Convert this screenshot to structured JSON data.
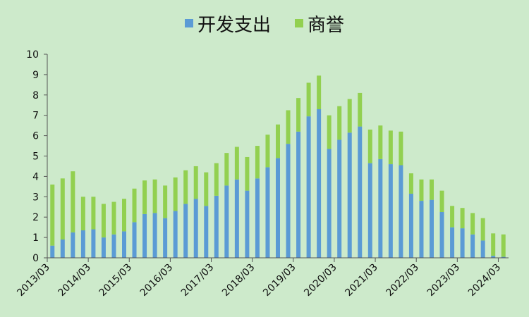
{
  "chart_data": {
    "type": "bar",
    "stacked": true,
    "title": "",
    "xlabel": "",
    "ylabel": "",
    "ylim": [
      0,
      10
    ],
    "yticks": [
      0,
      1,
      2,
      3,
      4,
      5,
      6,
      7,
      8,
      9,
      10
    ],
    "grid": false,
    "legend_position": "top-center",
    "x_tick_labels": [
      "2013/03",
      "2014/03",
      "2015/03",
      "2016/03",
      "2017/03",
      "2018/03",
      "2019/03",
      "2020/03",
      "2021/03",
      "2022/03",
      "2023/03",
      "2024/03"
    ],
    "categories": [
      "2013/03",
      "2013/06",
      "2013/09",
      "2013/12",
      "2014/03",
      "2014/06",
      "2014/09",
      "2014/12",
      "2015/03",
      "2015/06",
      "2015/09",
      "2015/12",
      "2016/03",
      "2016/06",
      "2016/09",
      "2016/12",
      "2017/03",
      "2017/06",
      "2017/09",
      "2017/12",
      "2018/03",
      "2018/06",
      "2018/09",
      "2018/12",
      "2019/03",
      "2019/06",
      "2019/09",
      "2019/12",
      "2020/03",
      "2020/06",
      "2020/09",
      "2020/12",
      "2021/03",
      "2021/06",
      "2021/09",
      "2021/12",
      "2022/03",
      "2022/06",
      "2022/09",
      "2022/12",
      "2023/03",
      "2023/06",
      "2023/09",
      "2023/12",
      "2024/03"
    ],
    "series": [
      {
        "name": "开发支出",
        "color": "#5b9bd5",
        "values": [
          0.6,
          0.9,
          1.25,
          1.35,
          1.4,
          1.0,
          1.15,
          1.3,
          1.75,
          2.15,
          2.2,
          1.95,
          2.3,
          2.65,
          2.9,
          2.55,
          3.05,
          3.55,
          3.85,
          3.3,
          3.9,
          4.45,
          4.9,
          5.6,
          6.2,
          6.95,
          7.3,
          5.35,
          5.8,
          6.15,
          6.45,
          4.65,
          4.85,
          4.6,
          4.55,
          3.15,
          2.8,
          2.85,
          2.25,
          1.5,
          1.45,
          1.15,
          0.85,
          0.1,
          0.05
        ]
      },
      {
        "name": "商誉",
        "color": "#92d050",
        "values": [
          3.0,
          3.0,
          3.0,
          1.65,
          1.6,
          1.65,
          1.6,
          1.6,
          1.65,
          1.65,
          1.65,
          1.6,
          1.65,
          1.65,
          1.6,
          1.65,
          1.6,
          1.6,
          1.6,
          1.65,
          1.6,
          1.6,
          1.65,
          1.65,
          1.65,
          1.65,
          1.65,
          1.65,
          1.65,
          1.65,
          1.65,
          1.65,
          1.65,
          1.65,
          1.65,
          1.0,
          1.05,
          1.0,
          1.05,
          1.05,
          1.0,
          1.05,
          1.1,
          1.1,
          1.1
        ]
      }
    ]
  }
}
